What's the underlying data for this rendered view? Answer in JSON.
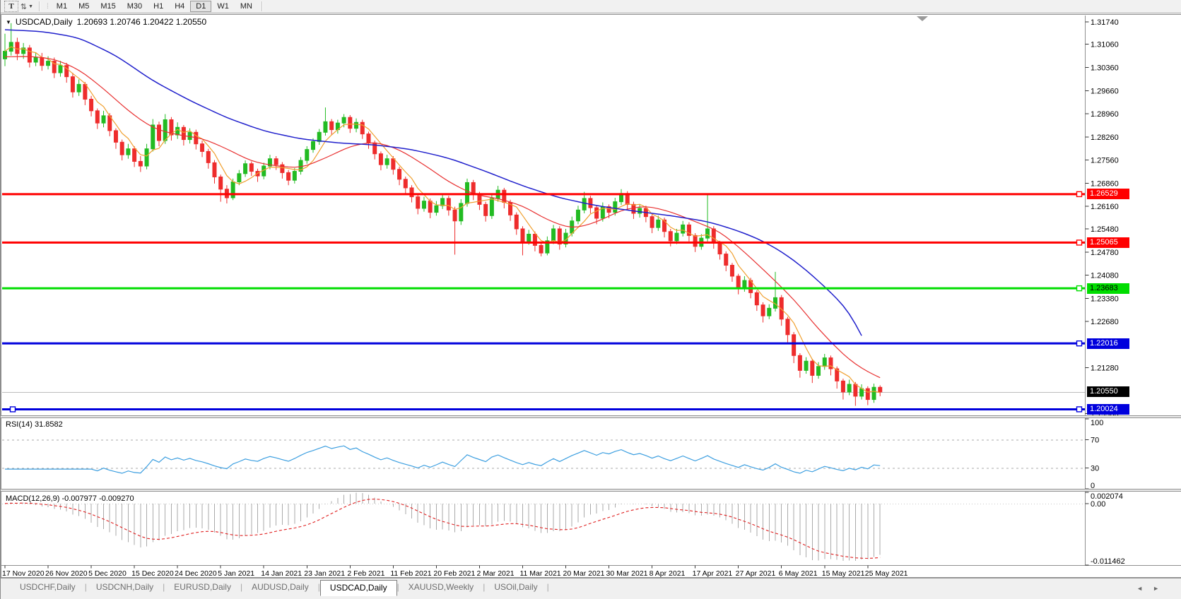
{
  "toolbar": {
    "text_tool": "T",
    "sort_icon": "⇅",
    "grip": "⁞",
    "timeframes": [
      "M1",
      "M5",
      "M15",
      "M30",
      "H1",
      "H4",
      "D1",
      "W1",
      "MN"
    ],
    "active_timeframe": "D1"
  },
  "chart": {
    "collapse_arrow": "▼",
    "symbol_title": "USDCAD,Daily",
    "ohlc": "1.20693 1.20746 1.20422 1.20550"
  },
  "price_axis": {
    "max": 1.3193,
    "min": 1.1982,
    "ticks": [
      1.3174,
      1.3106,
      1.3036,
      1.2966,
      1.2896,
      1.2826,
      1.2756,
      1.2686,
      1.2616,
      1.2548,
      1.2478,
      1.2408,
      1.2338,
      1.2268,
      1.2128,
      1.199
    ]
  },
  "levels": [
    {
      "label": "1.26529",
      "price": 1.26529,
      "color": "#ff0000",
      "text_color": "#ffffff"
    },
    {
      "label": "1.25065",
      "price": 1.25065,
      "color": "#ff0000",
      "text_color": "#ffffff"
    },
    {
      "label": "1.23683",
      "price": 1.23683,
      "color": "#00dd00",
      "text_color": "#000000"
    },
    {
      "label": "1.22016",
      "price": 1.22016,
      "color": "#0000dd",
      "text_color": "#ffffff"
    },
    {
      "label": "1.20024",
      "price": 1.20024,
      "color": "#0000dd",
      "text_color": "#ffffff",
      "left_anchor": true
    }
  ],
  "current_price": {
    "label": "1.20550",
    "price": 1.2055,
    "badge_color": "#000000",
    "text_color": "#ffffff",
    "line_color": "#bdbdbd"
  },
  "rsi": {
    "label": "RSI(14) 31.8582",
    "value": 31.8582,
    "axis_labels": {
      "top": "100",
      "upper": "70",
      "lower": "30",
      "bottom": "0"
    },
    "guide_levels": [
      70,
      30
    ]
  },
  "macd": {
    "label": "MACD(12,26,9) -0.007977 -0.009270",
    "macd_value": -0.007977,
    "signal_value": -0.00927,
    "axis_max": "0.002074",
    "axis_zero": "0.00",
    "axis_min": "-0.011462"
  },
  "tabs": {
    "items": [
      "USDCHF,Daily",
      "USDCNH,Daily",
      "EURUSD,Daily",
      "AUDUSD,Daily",
      "USDCAD,Daily",
      "XAUUSD,Weekly",
      "USOil,Daily"
    ],
    "active": "USDCAD,Daily",
    "scroll_left": "◄",
    "scroll_right": "►"
  },
  "chart_data": {
    "type": "candlestick",
    "symbol": "USDCAD",
    "timeframe": "Daily",
    "x_labels": [
      "17 Nov 2020",
      "26 Nov 2020",
      "5 Dec 2020",
      "15 Dec 2020",
      "24 Dec 2020",
      "5 Jan 2021",
      "14 Jan 2021",
      "23 Jan 2021",
      "2 Feb 2021",
      "11 Feb 2021",
      "20 Feb 2021",
      "2 Mar 2021",
      "11 Mar 2021",
      "20 Mar 2021",
      "30 Mar 2021",
      "8 Apr 2021",
      "17 Apr 2021",
      "27 Apr 2021",
      "6 May 2021",
      "15 May 2021",
      "25 May 2021"
    ],
    "label_every": 7,
    "ylim": [
      1.1982,
      1.3193
    ],
    "rsi_period": 14,
    "macd_params": [
      12,
      26,
      9
    ],
    "ma_fast_period": 5,
    "colors": {
      "up": "#22bb22",
      "down": "#ee2c2c",
      "ma_fast": "#f0a030",
      "ma_mid": "#e83030",
      "ma_slow": "#2020cc",
      "rsi": "#3d9fe0",
      "rsi_guides": "#aaaaaa",
      "macd_hist": "#aaaaaa",
      "macd_signal": "#e02020",
      "axis_text": "#000000"
    },
    "candles": [
      [
        1.3062,
        1.3138,
        1.304,
        1.3085
      ],
      [
        1.3085,
        1.317,
        1.3072,
        1.3112
      ],
      [
        1.3112,
        1.3126,
        1.3058,
        1.3078
      ],
      [
        1.3078,
        1.311,
        1.3062,
        1.3095
      ],
      [
        1.3095,
        1.3104,
        1.3036,
        1.3052
      ],
      [
        1.3052,
        1.3082,
        1.304,
        1.3066
      ],
      [
        1.3066,
        1.308,
        1.3026,
        1.3042
      ],
      [
        1.3042,
        1.307,
        1.303,
        1.3055
      ],
      [
        1.3055,
        1.3066,
        1.3004,
        1.302
      ],
      [
        1.302,
        1.3056,
        1.3008,
        1.3042
      ],
      [
        1.3042,
        1.305,
        1.299,
        1.3008
      ],
      [
        1.3008,
        1.302,
        1.2945,
        1.2962
      ],
      [
        1.2962,
        1.3,
        1.295,
        1.2985
      ],
      [
        1.2985,
        1.2992,
        1.2922,
        1.294
      ],
      [
        1.294,
        1.295,
        1.2888,
        1.2905
      ],
      [
        1.2905,
        1.2912,
        1.285,
        1.2868
      ],
      [
        1.2868,
        1.2905,
        1.2855,
        1.289
      ],
      [
        1.289,
        1.2898,
        1.2828,
        1.2845
      ],
      [
        1.2845,
        1.2852,
        1.279,
        1.281
      ],
      [
        1.281,
        1.2818,
        1.2755,
        1.2772
      ],
      [
        1.2772,
        1.2805,
        1.276,
        1.279
      ],
      [
        1.279,
        1.2798,
        1.2735,
        1.2752
      ],
      [
        1.2752,
        1.2768,
        1.272,
        1.2738
      ],
      [
        1.2738,
        1.2805,
        1.2728,
        1.279
      ],
      [
        1.279,
        1.288,
        1.2782,
        1.2862
      ],
      [
        1.2862,
        1.2872,
        1.2798,
        1.2815
      ],
      [
        1.2815,
        1.2895,
        1.2805,
        1.2878
      ],
      [
        1.2878,
        1.2886,
        1.2815,
        1.2832
      ],
      [
        1.2832,
        1.287,
        1.282,
        1.2855
      ],
      [
        1.2855,
        1.2862,
        1.28,
        1.2818
      ],
      [
        1.2818,
        1.2852,
        1.2806,
        1.284
      ],
      [
        1.284,
        1.2848,
        1.2788,
        1.2805
      ],
      [
        1.2805,
        1.2815,
        1.2765,
        1.2782
      ],
      [
        1.2782,
        1.279,
        1.273,
        1.2748
      ],
      [
        1.2748,
        1.2756,
        1.2685,
        1.2705
      ],
      [
        1.2705,
        1.2712,
        1.263,
        1.2668
      ],
      [
        1.2668,
        1.268,
        1.2625,
        1.2642
      ],
      [
        1.2642,
        1.27,
        1.2635,
        1.269
      ],
      [
        1.269,
        1.2726,
        1.268,
        1.2715
      ],
      [
        1.2715,
        1.2755,
        1.2705,
        1.2745
      ],
      [
        1.2745,
        1.2752,
        1.2708,
        1.2722
      ],
      [
        1.2722,
        1.273,
        1.269,
        1.2708
      ],
      [
        1.2708,
        1.2748,
        1.2698,
        1.2738
      ],
      [
        1.2738,
        1.2772,
        1.2728,
        1.276
      ],
      [
        1.276,
        1.2768,
        1.2726,
        1.2742
      ],
      [
        1.2742,
        1.275,
        1.27,
        1.2718
      ],
      [
        1.2718,
        1.2726,
        1.268,
        1.2695
      ],
      [
        1.2695,
        1.2732,
        1.2685,
        1.2722
      ],
      [
        1.2722,
        1.2765,
        1.2712,
        1.2755
      ],
      [
        1.2755,
        1.2798,
        1.2745,
        1.2788
      ],
      [
        1.2788,
        1.2822,
        1.2778,
        1.2812
      ],
      [
        1.2812,
        1.285,
        1.2802,
        1.284
      ],
      [
        1.284,
        1.2915,
        1.283,
        1.2872
      ],
      [
        1.2872,
        1.288,
        1.2832,
        1.2848
      ],
      [
        1.2848,
        1.2878,
        1.2836,
        1.2868
      ],
      [
        1.2868,
        1.2895,
        1.2855,
        1.2885
      ],
      [
        1.2885,
        1.2892,
        1.2838,
        1.2852
      ],
      [
        1.2852,
        1.2882,
        1.284,
        1.287
      ],
      [
        1.287,
        1.2878,
        1.282,
        1.2835
      ],
      [
        1.2835,
        1.2842,
        1.279,
        1.2808
      ],
      [
        1.2808,
        1.2815,
        1.2758,
        1.2775
      ],
      [
        1.2775,
        1.2782,
        1.2725,
        1.2742
      ],
      [
        1.2742,
        1.2772,
        1.273,
        1.276
      ],
      [
        1.276,
        1.2768,
        1.2712,
        1.2728
      ],
      [
        1.2728,
        1.2736,
        1.268,
        1.2698
      ],
      [
        1.2698,
        1.2706,
        1.2652,
        1.2672
      ],
      [
        1.2672,
        1.268,
        1.2628,
        1.2645
      ],
      [
        1.2645,
        1.2652,
        1.2592,
        1.261
      ],
      [
        1.261,
        1.2645,
        1.26,
        1.2632
      ],
      [
        1.2632,
        1.264,
        1.258,
        1.2598
      ],
      [
        1.2598,
        1.2632,
        1.2588,
        1.2618
      ],
      [
        1.2618,
        1.2652,
        1.2608,
        1.264
      ],
      [
        1.264,
        1.2648,
        1.2588,
        1.2605
      ],
      [
        1.2605,
        1.2615,
        1.247,
        1.2572
      ],
      [
        1.2572,
        1.2638,
        1.256,
        1.2625
      ],
      [
        1.2625,
        1.27,
        1.2615,
        1.2688
      ],
      [
        1.2688,
        1.2696,
        1.2635,
        1.2652
      ],
      [
        1.2652,
        1.266,
        1.2605,
        1.2622
      ],
      [
        1.2622,
        1.263,
        1.257,
        1.2588
      ],
      [
        1.2588,
        1.2652,
        1.2578,
        1.264
      ],
      [
        1.264,
        1.2678,
        1.263,
        1.2665
      ],
      [
        1.2665,
        1.2672,
        1.261,
        1.2628
      ],
      [
        1.2628,
        1.2636,
        1.2572,
        1.259
      ],
      [
        1.259,
        1.2598,
        1.253,
        1.2548
      ],
      [
        1.2548,
        1.2556,
        1.2468,
        1.251
      ],
      [
        1.251,
        1.2545,
        1.25,
        1.2532
      ],
      [
        1.2532,
        1.254,
        1.248,
        1.2498
      ],
      [
        1.2498,
        1.2506,
        1.2465,
        1.2475
      ],
      [
        1.2475,
        1.2525,
        1.2468,
        1.2512
      ],
      [
        1.2512,
        1.256,
        1.2502,
        1.2548
      ],
      [
        1.2548,
        1.2556,
        1.2485,
        1.2502
      ],
      [
        1.2502,
        1.2548,
        1.2492,
        1.2535
      ],
      [
        1.2535,
        1.2585,
        1.2525,
        1.2572
      ],
      [
        1.2572,
        1.2618,
        1.2562,
        1.2605
      ],
      [
        1.2605,
        1.266,
        1.2595,
        1.264
      ],
      [
        1.264,
        1.2648,
        1.2595,
        1.2612
      ],
      [
        1.2612,
        1.262,
        1.2562,
        1.258
      ],
      [
        1.258,
        1.2628,
        1.257,
        1.2615
      ],
      [
        1.2615,
        1.2622,
        1.258,
        1.2598
      ],
      [
        1.2598,
        1.2642,
        1.2588,
        1.263
      ],
      [
        1.263,
        1.2668,
        1.262,
        1.2655
      ],
      [
        1.2655,
        1.2662,
        1.2605,
        1.2622
      ],
      [
        1.2622,
        1.263,
        1.2578,
        1.2595
      ],
      [
        1.2595,
        1.2622,
        1.2582,
        1.261
      ],
      [
        1.261,
        1.2618,
        1.2568,
        1.2585
      ],
      [
        1.2585,
        1.2592,
        1.2535,
        1.2552
      ],
      [
        1.2552,
        1.2588,
        1.2542,
        1.2575
      ],
      [
        1.2575,
        1.2582,
        1.2522,
        1.254
      ],
      [
        1.254,
        1.2548,
        1.2495,
        1.2512
      ],
      [
        1.2512,
        1.2548,
        1.2502,
        1.2535
      ],
      [
        1.2535,
        1.2572,
        1.2525,
        1.256
      ],
      [
        1.256,
        1.2568,
        1.251,
        1.2528
      ],
      [
        1.2528,
        1.2535,
        1.2478,
        1.2495
      ],
      [
        1.2495,
        1.2532,
        1.2485,
        1.252
      ],
      [
        1.252,
        1.2652,
        1.251,
        1.2548
      ],
      [
        1.2548,
        1.2556,
        1.2488,
        1.2505
      ],
      [
        1.2505,
        1.2512,
        1.2455,
        1.2472
      ],
      [
        1.2472,
        1.248,
        1.242,
        1.2438
      ],
      [
        1.2438,
        1.2445,
        1.2388,
        1.2405
      ],
      [
        1.2405,
        1.2412,
        1.235,
        1.2368
      ],
      [
        1.2368,
        1.2405,
        1.2358,
        1.2392
      ],
      [
        1.2392,
        1.24,
        1.2338,
        1.2355
      ],
      [
        1.2355,
        1.2362,
        1.23,
        1.2318
      ],
      [
        1.2318,
        1.2326,
        1.2265,
        1.2285
      ],
      [
        1.2285,
        1.232,
        1.2275,
        1.2308
      ],
      [
        1.2308,
        1.2418,
        1.2298,
        1.234
      ],
      [
        1.234,
        1.2348,
        1.2255,
        1.2275
      ],
      [
        1.2275,
        1.2282,
        1.2205,
        1.2228
      ],
      [
        1.2228,
        1.2236,
        1.2142,
        1.2165
      ],
      [
        1.2165,
        1.2172,
        1.2098,
        1.212
      ],
      [
        1.212,
        1.216,
        1.211,
        1.2148
      ],
      [
        1.2148,
        1.2155,
        1.2082,
        1.2105
      ],
      [
        1.2105,
        1.2145,
        1.2095,
        1.2132
      ],
      [
        1.2132,
        1.217,
        1.2122,
        1.2158
      ],
      [
        1.2158,
        1.2165,
        1.2105,
        1.2125
      ],
      [
        1.2125,
        1.2132,
        1.2065,
        1.2088
      ],
      [
        1.2088,
        1.2095,
        1.2032,
        1.2055
      ],
      [
        1.2055,
        1.2092,
        1.2045,
        1.2078
      ],
      [
        1.2078,
        1.2085,
        1.2013,
        1.2042
      ],
      [
        1.2042,
        1.2078,
        1.2032,
        1.2065
      ],
      [
        1.2065,
        1.2072,
        1.2015,
        1.2032
      ],
      [
        1.2032,
        1.208,
        1.2022,
        1.2069
      ],
      [
        1.2069,
        1.2075,
        1.2042,
        1.2055
      ]
    ],
    "ma_slow_points": [
      [
        0,
        1.315
      ],
      [
        6,
        1.3145
      ],
      [
        12,
        1.3126
      ],
      [
        18,
        1.3072
      ],
      [
        24,
        1.2996
      ],
      [
        30,
        1.2936
      ],
      [
        36,
        1.2884
      ],
      [
        42,
        1.2844
      ],
      [
        48,
        1.282
      ],
      [
        54,
        1.2808
      ],
      [
        60,
        1.2802
      ],
      [
        66,
        1.2788
      ],
      [
        72,
        1.2762
      ],
      [
        78,
        1.2722
      ],
      [
        84,
        1.2678
      ],
      [
        90,
        1.2642
      ],
      [
        96,
        1.2618
      ],
      [
        102,
        1.2602
      ],
      [
        108,
        1.2588
      ],
      [
        114,
        1.257
      ],
      [
        118,
        1.2548
      ],
      [
        122,
        1.252
      ],
      [
        126,
        1.248
      ],
      [
        130,
        1.2424
      ],
      [
        134,
        1.2356
      ],
      [
        137,
        1.2298
      ],
      [
        139,
        1.2225
      ]
    ],
    "ma_mid_points": [
      [
        0,
        1.3068
      ],
      [
        4,
        1.307
      ],
      [
        8,
        1.3062
      ],
      [
        12,
        1.303
      ],
      [
        16,
        1.2972
      ],
      [
        20,
        1.2905
      ],
      [
        24,
        1.2852
      ],
      [
        28,
        1.2832
      ],
      [
        32,
        1.2822
      ],
      [
        36,
        1.279
      ],
      [
        40,
        1.2752
      ],
      [
        44,
        1.2738
      ],
      [
        48,
        1.2732
      ],
      [
        52,
        1.2762
      ],
      [
        56,
        1.2798
      ],
      [
        60,
        1.2812
      ],
      [
        64,
        1.2788
      ],
      [
        68,
        1.2742
      ],
      [
        72,
        1.269
      ],
      [
        76,
        1.2652
      ],
      [
        80,
        1.264
      ],
      [
        84,
        1.2618
      ],
      [
        88,
        1.2575
      ],
      [
        92,
        1.2548
      ],
      [
        96,
        1.2568
      ],
      [
        100,
        1.2605
      ],
      [
        104,
        1.2618
      ],
      [
        108,
        1.26
      ],
      [
        112,
        1.257
      ],
      [
        116,
        1.254
      ],
      [
        120,
        1.2478
      ],
      [
        124,
        1.2408
      ],
      [
        128,
        1.2335
      ],
      [
        132,
        1.2245
      ],
      [
        136,
        1.2168
      ],
      [
        139,
        1.2125
      ],
      [
        142,
        1.2098
      ]
    ]
  }
}
